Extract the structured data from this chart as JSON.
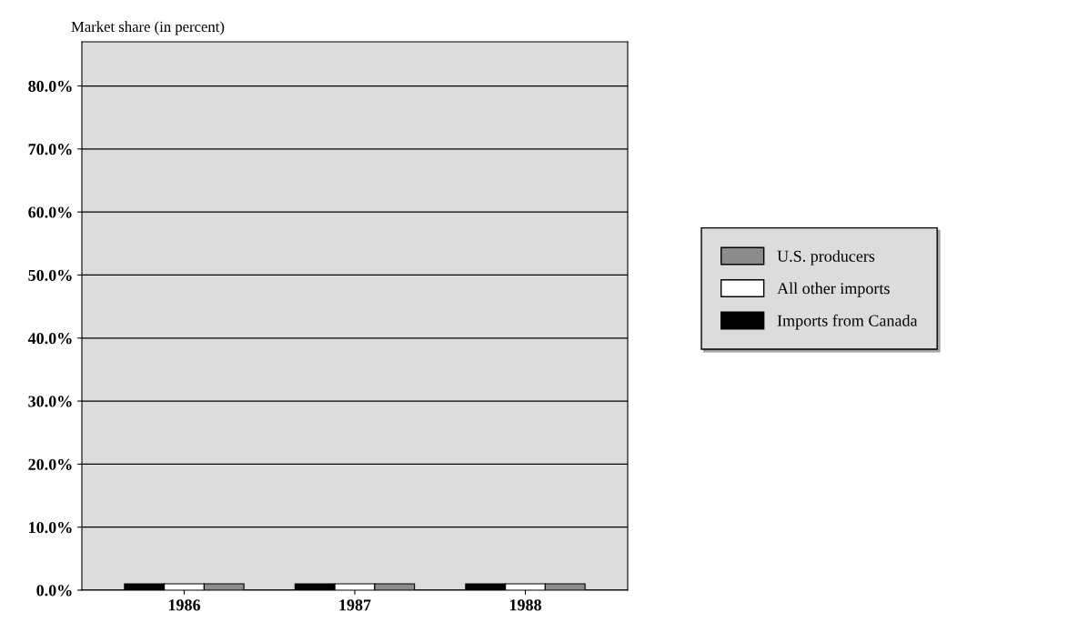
{
  "chart_data": {
    "type": "bar",
    "title": "Market share (in percent)",
    "categories": [
      "1986",
      "1987",
      "1988"
    ],
    "series": [
      {
        "name": "Imports from Canada",
        "color": "#000000",
        "values": [
          1.0,
          1.0,
          1.0
        ]
      },
      {
        "name": "All other imports",
        "color": "#ffffff",
        "values": [
          1.0,
          1.0,
          1.0
        ]
      },
      {
        "name": "U.S. producers",
        "color": "#8c8c8c",
        "values": [
          1.0,
          1.0,
          1.0
        ]
      }
    ],
    "ylim": [
      0,
      87
    ],
    "yticks": [
      {
        "value": 0,
        "label": "0.0%"
      },
      {
        "value": 10,
        "label": "10.0%"
      },
      {
        "value": 20,
        "label": "20.0%"
      },
      {
        "value": 30,
        "label": "30.0%"
      },
      {
        "value": 40,
        "label": "40.0%"
      },
      {
        "value": 50,
        "label": "50.0%"
      },
      {
        "value": 60,
        "label": "60.0%"
      },
      {
        "value": 70,
        "label": "70.0%"
      },
      {
        "value": 80,
        "label": "80.0%"
      }
    ],
    "grid": "y",
    "legend": "right"
  }
}
